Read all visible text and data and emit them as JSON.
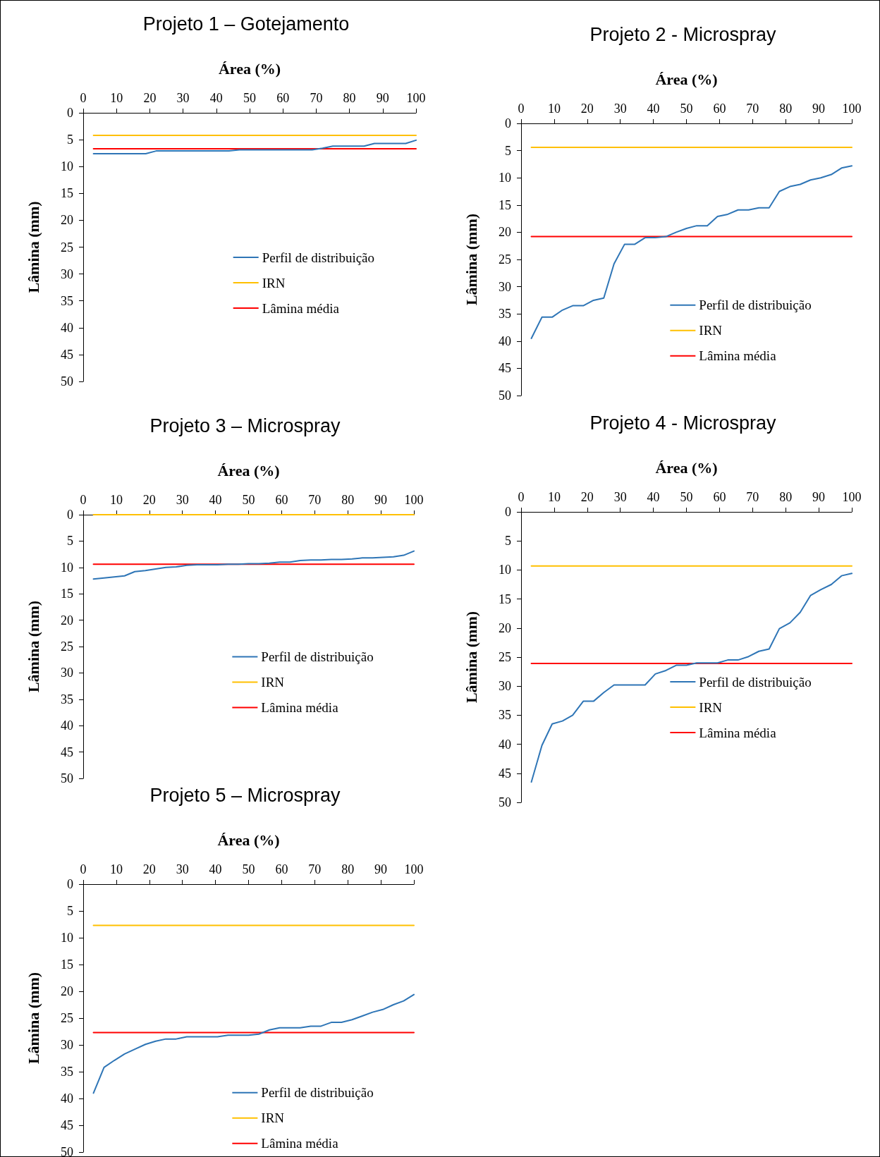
{
  "chart_data": [
    {
      "type": "line",
      "title": "Projeto 1 – Gotejamento",
      "xlabel": "Área (%)",
      "ylabel": "Lâmina (mm)",
      "xlim": [
        0,
        100
      ],
      "xticks": [
        0,
        10,
        20,
        30,
        40,
        50,
        60,
        70,
        80,
        90,
        100
      ],
      "ylim": [
        50,
        0
      ],
      "yticks": [
        0,
        5,
        10,
        15,
        20,
        25,
        30,
        35,
        40,
        45,
        50
      ],
      "legend": "right",
      "grid": false,
      "series": [
        {
          "name": "Perfil de distribuição",
          "color": "#2e75b6",
          "x": [
            3.1,
            6.3,
            9.4,
            12.5,
            15.6,
            18.8,
            21.9,
            25,
            28.1,
            31.3,
            34.4,
            37.5,
            40.6,
            43.8,
            46.9,
            50,
            53.1,
            56.3,
            59.4,
            62.5,
            65.6,
            68.8,
            71.9,
            75,
            78.1,
            81.3,
            84.4,
            87.5,
            90.6,
            93.8,
            96.9,
            100
          ],
          "values": [
            7.6,
            7.6,
            7.6,
            7.6,
            7.6,
            7.6,
            7.1,
            7.1,
            7.1,
            7.1,
            7.1,
            7.1,
            7.1,
            7.1,
            6.9,
            6.9,
            6.9,
            6.9,
            6.9,
            6.9,
            6.9,
            6.9,
            6.6,
            6.2,
            6.2,
            6.2,
            6.2,
            5.7,
            5.7,
            5.7,
            5.7,
            5.1
          ]
        },
        {
          "name": "IRN",
          "color": "#ffc000",
          "x": [
            3.1,
            100
          ],
          "values": [
            4.2,
            4.2
          ]
        },
        {
          "name": "Lâmina média",
          "color": "#ff0000",
          "x": [
            3.1,
            100
          ],
          "values": [
            6.7,
            6.7
          ]
        }
      ]
    },
    {
      "type": "line",
      "title": "Projeto 2 - Microspray",
      "xlabel": "Área (%)",
      "ylabel": "Lâmina (mm)",
      "xlim": [
        0,
        100
      ],
      "xticks": [
        0,
        10,
        20,
        30,
        40,
        50,
        60,
        70,
        80,
        90,
        100
      ],
      "ylim": [
        50,
        0
      ],
      "yticks": [
        0,
        5,
        10,
        15,
        20,
        25,
        30,
        35,
        40,
        45,
        50
      ],
      "legend": "right",
      "grid": false,
      "series": [
        {
          "name": "Perfil de distribuição",
          "color": "#2e75b6",
          "x": [
            3.1,
            6.3,
            9.4,
            12.5,
            15.6,
            18.8,
            21.9,
            25,
            28.1,
            31.3,
            34.4,
            37.5,
            40.6,
            43.8,
            46.9,
            50,
            53.1,
            56.3,
            59.4,
            62.5,
            65.6,
            68.8,
            71.9,
            75,
            78.1,
            81.3,
            84.4,
            87.5,
            90.6,
            93.8,
            96.9,
            100
          ],
          "values": [
            39.5,
            35.6,
            35.6,
            34.3,
            33.5,
            33.5,
            32.5,
            32.1,
            25.8,
            22.2,
            22.2,
            21.0,
            21.0,
            20.8,
            20.0,
            19.3,
            18.8,
            18.8,
            17.1,
            16.7,
            15.9,
            15.9,
            15.5,
            15.5,
            12.5,
            11.6,
            11.2,
            10.4,
            10.0,
            9.4,
            8.2,
            7.8
          ]
        },
        {
          "name": "IRN",
          "color": "#ffc000",
          "x": [
            3.1,
            100
          ],
          "values": [
            4.4,
            4.4
          ]
        },
        {
          "name": "Lâmina média",
          "color": "#ff0000",
          "x": [
            3.1,
            100
          ],
          "values": [
            20.8,
            20.8
          ]
        }
      ]
    },
    {
      "type": "line",
      "title": "Projeto 3 – Microspray",
      "xlabel": "Área (%)",
      "ylabel": "Lâmina (mm)",
      "xlim": [
        0,
        100
      ],
      "xticks": [
        0,
        10,
        20,
        30,
        40,
        50,
        60,
        70,
        80,
        90,
        100
      ],
      "ylim": [
        50,
        0
      ],
      "yticks": [
        0,
        5,
        10,
        15,
        20,
        25,
        30,
        35,
        40,
        45,
        50
      ],
      "legend": "right",
      "grid": false,
      "series": [
        {
          "name": "Perfil de distribuição",
          "color": "#2e75b6",
          "x": [
            3.1,
            6.3,
            9.4,
            12.5,
            15.6,
            18.8,
            21.9,
            25,
            28.1,
            31.3,
            34.4,
            37.5,
            40.6,
            43.8,
            46.9,
            50,
            53.1,
            56.3,
            59.4,
            62.5,
            65.6,
            68.8,
            71.9,
            75,
            78.1,
            81.3,
            84.4,
            87.5,
            90.6,
            93.8,
            96.9,
            100
          ],
          "values": [
            12.2,
            12.0,
            11.8,
            11.6,
            10.8,
            10.6,
            10.3,
            10.0,
            9.9,
            9.6,
            9.5,
            9.5,
            9.5,
            9.4,
            9.4,
            9.3,
            9.3,
            9.2,
            9.0,
            9.0,
            8.7,
            8.6,
            8.6,
            8.5,
            8.5,
            8.4,
            8.2,
            8.2,
            8.1,
            8.0,
            7.7,
            6.9
          ]
        },
        {
          "name": "IRN",
          "color": "#ffc000",
          "x": [
            3.1,
            100
          ],
          "values": [
            0,
            0
          ]
        },
        {
          "name": "Lâmina média",
          "color": "#ff0000",
          "x": [
            3.1,
            100
          ],
          "values": [
            9.4,
            9.4
          ]
        }
      ]
    },
    {
      "type": "line",
      "title": "Projeto 4 - Microspray",
      "xlabel": "Área (%)",
      "ylabel": "Lâmina (mm)",
      "xlim": [
        0,
        100
      ],
      "xticks": [
        0,
        10,
        20,
        30,
        40,
        50,
        60,
        70,
        80,
        90,
        100
      ],
      "ylim": [
        50,
        0
      ],
      "yticks": [
        0,
        5,
        10,
        15,
        20,
        25,
        30,
        35,
        40,
        45,
        50
      ],
      "legend": "right",
      "grid": false,
      "series": [
        {
          "name": "Perfil de distribuição",
          "color": "#2e75b6",
          "x": [
            3.1,
            6.3,
            9.4,
            12.5,
            15.6,
            18.8,
            21.9,
            25,
            28.1,
            31.3,
            34.4,
            37.5,
            40.6,
            43.8,
            46.9,
            50,
            53.1,
            56.3,
            59.4,
            62.5,
            65.6,
            68.8,
            71.9,
            75,
            78.1,
            81.3,
            84.4,
            87.5,
            90.6,
            93.8,
            96.9,
            100
          ],
          "values": [
            46.5,
            40.2,
            36.5,
            36.0,
            35.0,
            32.6,
            32.6,
            31.1,
            29.8,
            29.8,
            29.8,
            29.8,
            27.9,
            27.3,
            26.4,
            26.4,
            26.0,
            26.0,
            26.0,
            25.5,
            25.5,
            24.9,
            24.0,
            23.6,
            20.1,
            19.1,
            17.3,
            14.4,
            13.4,
            12.5,
            11.0,
            10.6
          ]
        },
        {
          "name": "IRN",
          "color": "#ffc000",
          "x": [
            3.1,
            100
          ],
          "values": [
            9.3,
            9.3
          ]
        },
        {
          "name": "Lâmina média",
          "color": "#ff0000",
          "x": [
            3.1,
            100
          ],
          "values": [
            26.1,
            26.1
          ]
        }
      ]
    },
    {
      "type": "line",
      "title": "Projeto 5 – Microspray",
      "xlabel": "Área (%)",
      "ylabel": "Lâmina (mm)",
      "xlim": [
        0,
        100
      ],
      "xticks": [
        0,
        10,
        20,
        30,
        40,
        50,
        60,
        70,
        80,
        90,
        100
      ],
      "ylim": [
        50,
        0
      ],
      "yticks": [
        0,
        5,
        10,
        15,
        20,
        25,
        30,
        35,
        40,
        45,
        50
      ],
      "legend": "right",
      "grid": false,
      "series": [
        {
          "name": "Perfil de distribuição",
          "color": "#2e75b6",
          "x": [
            3.1,
            6.3,
            9.4,
            12.5,
            15.6,
            18.8,
            21.9,
            25,
            28.1,
            31.3,
            34.4,
            37.5,
            40.6,
            43.8,
            46.9,
            50,
            53.1,
            56.3,
            59.4,
            62.5,
            65.6,
            68.8,
            71.9,
            75,
            78.1,
            81.3,
            84.4,
            87.5,
            90.6,
            93.8,
            96.9,
            100
          ],
          "values": [
            39.0,
            34.2,
            32.9,
            31.7,
            30.8,
            29.9,
            29.3,
            28.9,
            28.9,
            28.5,
            28.5,
            28.5,
            28.5,
            28.2,
            28.2,
            28.2,
            28.0,
            27.2,
            26.8,
            26.8,
            26.8,
            26.5,
            26.5,
            25.8,
            25.8,
            25.3,
            24.6,
            23.9,
            23.4,
            22.5,
            21.8,
            20.6
          ]
        },
        {
          "name": "IRN",
          "color": "#ffc000",
          "x": [
            3.1,
            100
          ],
          "values": [
            7.7,
            7.7
          ]
        },
        {
          "name": "Lâmina média",
          "color": "#ff0000",
          "x": [
            3.1,
            100
          ],
          "values": [
            27.7,
            27.7
          ]
        }
      ]
    }
  ]
}
